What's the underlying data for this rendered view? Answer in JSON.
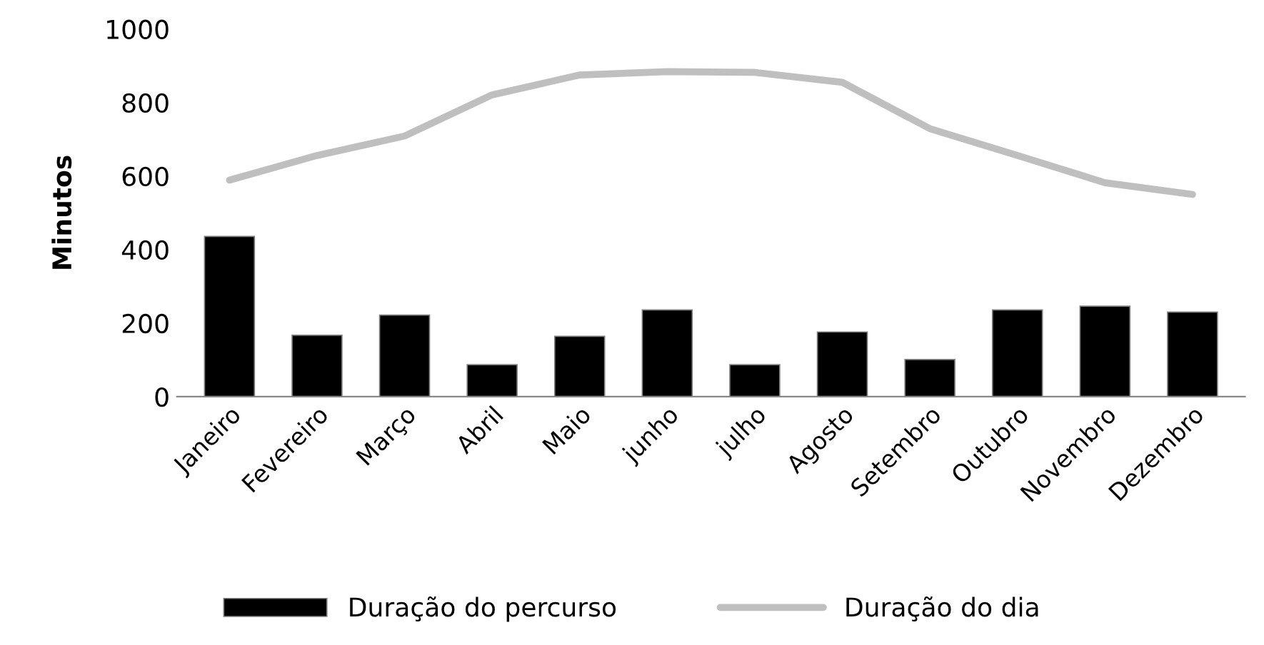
{
  "chart_data": {
    "type": "bar",
    "ylabel": "Minutos",
    "categories": [
      "Janeiro",
      "Fevereiro",
      "Março",
      "Abril",
      "Maio",
      "junho",
      "julho",
      "Agosto",
      "Setembro",
      "Outubro",
      "Novembro",
      "Dezembro"
    ],
    "series": [
      {
        "name": "Duração do percurso",
        "color": "#000000",
        "values": [
          436,
          167,
          222,
          87,
          164,
          236,
          87,
          176,
          101,
          236,
          246,
          230
        ]
      },
      {
        "name": "Duração do dia",
        "type": "line",
        "color": "#bfbfbf",
        "values": [
          589,
          656,
          709,
          821,
          875,
          884,
          882,
          855,
          729,
          656,
          582,
          550
        ]
      }
    ],
    "ylim": [
      0,
      1000
    ],
    "yticks": [
      0,
      200,
      400,
      600,
      800,
      1000
    ],
    "grid": false,
    "legend": "bottom"
  }
}
